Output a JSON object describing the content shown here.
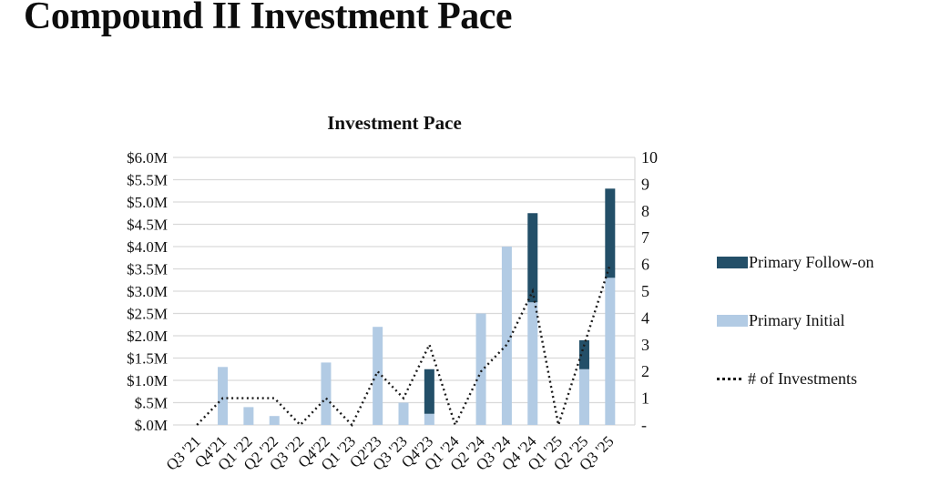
{
  "page": {
    "title": "Compound II Investment Pace"
  },
  "chart": {
    "title": "Investment Pace",
    "legend": [
      {
        "label": "Primary Follow-on",
        "swatch": "filled-rect",
        "color": "#234f68"
      },
      {
        "label": "Primary Initial",
        "swatch": "filled-rect",
        "color": "#b2cbe4"
      },
      {
        "label": "# of Investments",
        "swatch": "dotted-line",
        "color": "#1a1a1a"
      }
    ]
  },
  "chart_data": {
    "type": "bar",
    "subtype": "stacked-bars-with-secondary-axis-line",
    "title": "Investment Pace",
    "categories": [
      "Q3 '21",
      "Q4'21",
      "Q1 '22",
      "Q2 '22",
      "Q3 '22",
      "Q4'22",
      "Q1 '23",
      "Q2'23",
      "Q3 '23",
      "Q4'23",
      "Q1 '24",
      "Q2 '24",
      "Q3 '24",
      "Q4 '24",
      "Q1 '25",
      "Q2 '25",
      "Q3 '25"
    ],
    "series": [
      {
        "name": "Primary Initial",
        "type": "bar",
        "stack": "primary",
        "axis": "left",
        "color": "#b2cbe4",
        "unit": "USD millions",
        "values": [
          0,
          1.3,
          0.4,
          0.2,
          0,
          1.4,
          0,
          2.2,
          0.5,
          0.25,
          0,
          2.5,
          4.0,
          2.75,
          0,
          1.25,
          3.3
        ]
      },
      {
        "name": "Primary Follow-on",
        "type": "bar",
        "stack": "primary",
        "axis": "left",
        "color": "#234f68",
        "unit": "USD millions",
        "values": [
          0,
          0,
          0,
          0,
          0,
          0,
          0,
          0,
          0,
          1.0,
          0,
          0,
          0,
          2.0,
          0,
          0.65,
          2.0
        ]
      },
      {
        "name": "# of Investments",
        "type": "line",
        "style": "dotted",
        "axis": "right",
        "color": "#1a1a1a",
        "values": [
          0,
          1,
          1,
          1,
          0,
          1,
          0,
          2,
          1,
          3,
          0,
          2,
          3,
          5,
          0,
          3,
          6
        ]
      }
    ],
    "left_axis": {
      "min": 0,
      "max": 6,
      "step": 0.5,
      "unit": "USD millions",
      "tick_labels": [
        "$6.0M",
        "$5.5M",
        "$5.0M",
        "$4.5M",
        "$4.0M",
        "$3.5M",
        "$3.0M",
        "$2.5M",
        "$2.0M",
        "$1.5M",
        "$1.0M",
        "$.5M",
        "$.0M"
      ]
    },
    "right_axis": {
      "min": 0,
      "max": 10,
      "step": 1,
      "tick_labels": [
        "10",
        "9",
        "8",
        "7",
        "6",
        "5",
        "4",
        "3",
        "2",
        "1",
        "-"
      ]
    },
    "grid": "horizontal",
    "grid_color": "#d9d9d9",
    "legend_position": "right"
  }
}
